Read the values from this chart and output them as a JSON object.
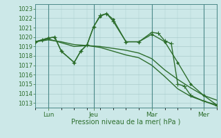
{
  "xlabel": "Pression niveau de la mer( hPa )",
  "bg_color": "#cce8e8",
  "grid_color": "#aacccc",
  "line_color": "#2d6e2d",
  "spine_color": "#4a8888",
  "ylim": [
    1012.5,
    1023.5
  ],
  "xlim": [
    0,
    14
  ],
  "yticks": [
    1013,
    1014,
    1015,
    1016,
    1017,
    1018,
    1019,
    1020,
    1021,
    1022,
    1023
  ],
  "xtick_positions": [
    1.0,
    4.5,
    9.0,
    13.0
  ],
  "xtick_labels": [
    "Lun",
    "Jeu",
    "Mar",
    "Mer"
  ],
  "vlines": [
    1.0,
    4.5,
    9.0,
    13.0
  ],
  "series": [
    {
      "x": [
        0,
        1,
        2,
        3,
        4,
        5,
        6,
        7,
        8,
        9,
        10,
        11,
        12,
        13,
        14
      ],
      "y": [
        1019.5,
        1019.7,
        1019.5,
        1019.2,
        1019.1,
        1019.0,
        1018.8,
        1018.6,
        1018.3,
        1017.7,
        1016.5,
        1015.5,
        1014.6,
        1013.8,
        1013.3
      ],
      "marker": null,
      "lw": 1.0
    },
    {
      "x": [
        0,
        1,
        2,
        3,
        4,
        5,
        6,
        7,
        8,
        9,
        10,
        11,
        12,
        13,
        14
      ],
      "y": [
        1019.5,
        1019.8,
        1019.4,
        1019.0,
        1019.1,
        1018.9,
        1018.5,
        1018.1,
        1017.8,
        1017.0,
        1015.8,
        1014.5,
        1013.7,
        1013.2,
        1012.8
      ],
      "marker": null,
      "lw": 1.0
    },
    {
      "x": [
        0,
        0.5,
        1,
        1.5,
        2,
        3,
        3.5,
        4,
        4.5,
        5,
        5.5,
        6,
        7,
        8,
        9,
        10,
        11,
        12,
        13,
        14
      ],
      "y": [
        1019.5,
        1019.7,
        1019.9,
        1020.0,
        1018.5,
        1017.3,
        1018.5,
        1019.2,
        1021.1,
        1022.2,
        1022.5,
        1021.9,
        1019.5,
        1019.5,
        1020.3,
        1019.5,
        1017.3,
        1015.0,
        1013.8,
        1012.8
      ],
      "marker": "D",
      "lw": 1.0,
      "ms": 2.0
    },
    {
      "x": [
        0,
        0.5,
        1,
        1.5,
        2,
        3,
        3.5,
        4,
        4.5,
        5,
        5.5,
        6,
        7,
        8,
        9,
        9.5,
        10,
        10.5,
        11,
        11.5,
        12,
        13,
        14
      ],
      "y": [
        1019.5,
        1019.7,
        1019.9,
        1020.0,
        1018.5,
        1017.3,
        1018.5,
        1019.2,
        1021.1,
        1022.3,
        1022.5,
        1021.7,
        1019.5,
        1019.5,
        1020.5,
        1020.4,
        1019.6,
        1019.3,
        1015.0,
        1014.8,
        1013.8,
        1013.2,
        1012.7
      ],
      "marker": "+",
      "lw": 1.0,
      "ms": 4.0
    }
  ]
}
